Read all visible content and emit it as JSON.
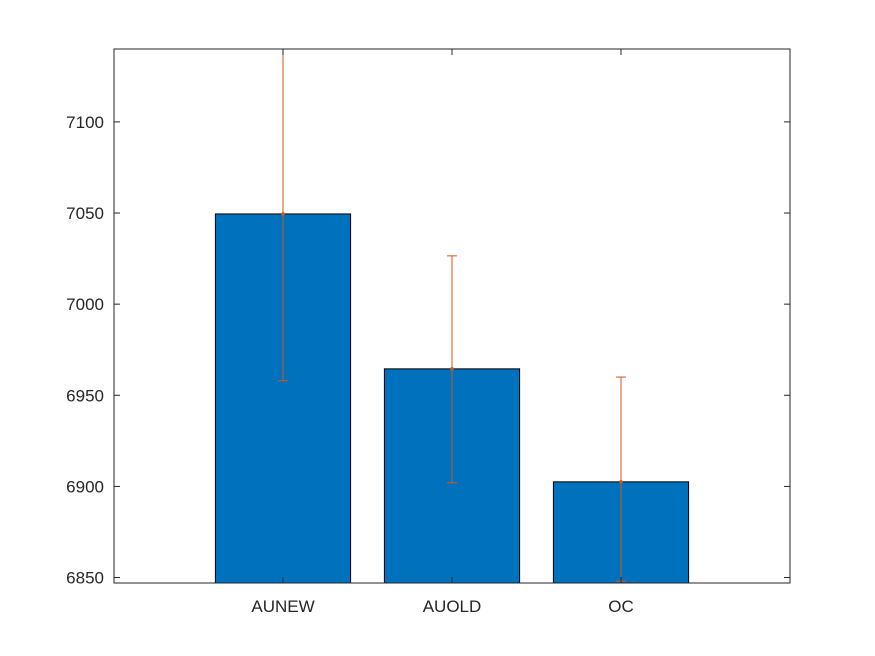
{
  "chart_data": {
    "type": "bar",
    "title": "",
    "xlabel": "",
    "ylabel": "",
    "categories": [
      "AUNEW",
      "AUOLD",
      "OC"
    ],
    "values": [
      7049.5,
      6964.5,
      6902.5
    ],
    "errors": [
      {
        "low": 6958,
        "high": 7140
      },
      {
        "low": 6902,
        "high": 7026.5
      },
      {
        "low": 6848,
        "high": 6960
      }
    ],
    "ylim": [
      6847,
      7140
    ],
    "yticks": [
      6850,
      6900,
      6950,
      7000,
      7050,
      7100
    ],
    "xlim": [
      0,
      4
    ],
    "bar_width": 0.8,
    "grid": false,
    "colors": {
      "bar_fill": "#0072BD",
      "bar_edge": "#000000",
      "error_bar": "#D95319",
      "axis": "#262626"
    }
  }
}
